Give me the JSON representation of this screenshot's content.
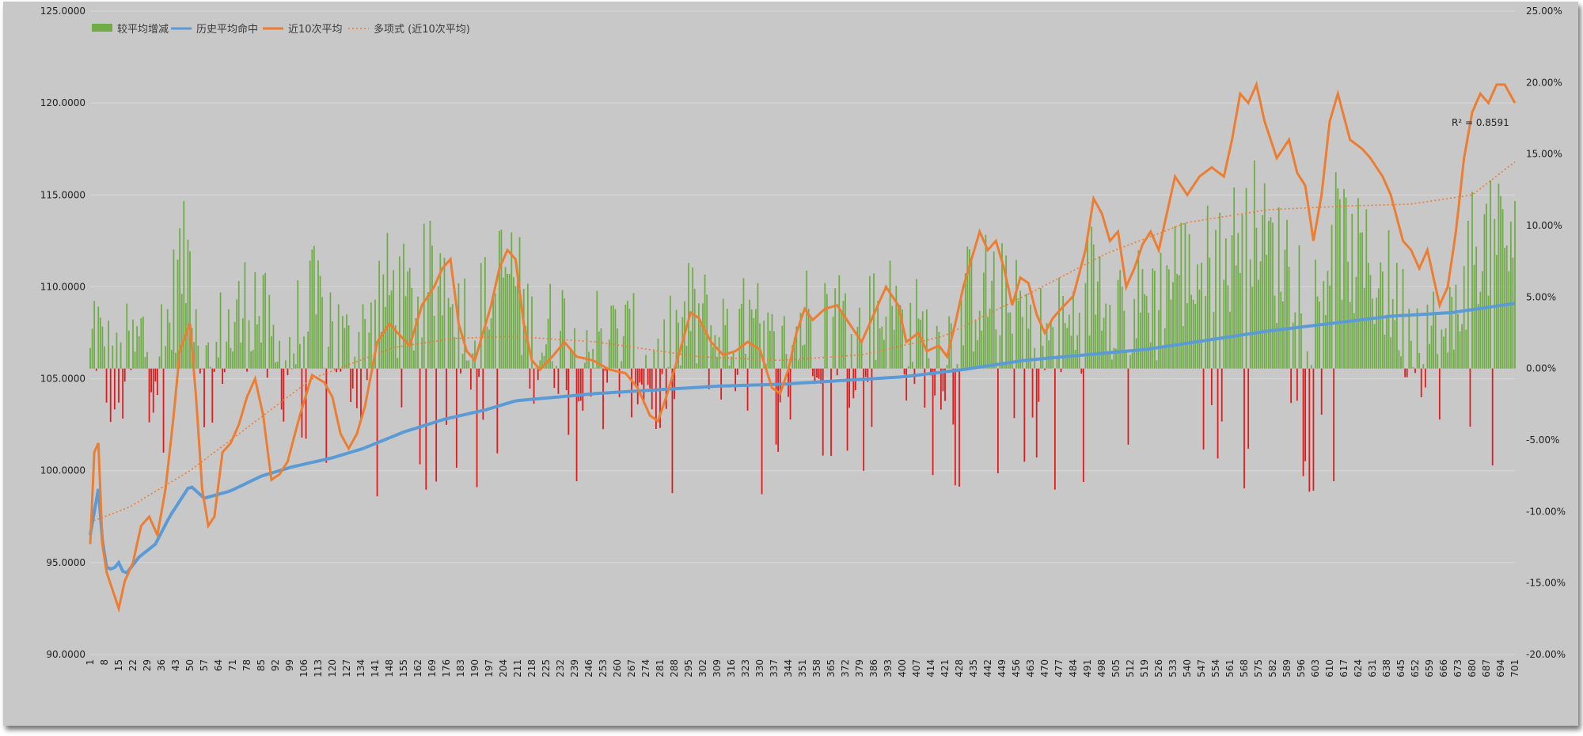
{
  "chart_data": {
    "type": "bar+line",
    "x_range": [
      1,
      701
    ],
    "x_ticks": [
      1,
      8,
      15,
      22,
      29,
      36,
      43,
      50,
      57,
      64,
      71,
      78,
      85,
      92,
      99,
      106,
      113,
      120,
      127,
      134,
      141,
      148,
      155,
      162,
      169,
      176,
      183,
      190,
      197,
      204,
      211,
      218,
      225,
      232,
      239,
      246,
      253,
      260,
      267,
      274,
      281,
      288,
      295,
      302,
      309,
      316,
      323,
      330,
      337,
      344,
      351,
      358,
      365,
      372,
      379,
      386,
      393,
      400,
      407,
      414,
      421,
      428,
      435,
      442,
      449,
      456,
      463,
      470,
      477,
      484,
      491,
      498,
      505,
      512,
      519,
      526,
      533,
      540,
      547,
      554,
      561,
      568,
      575,
      582,
      589,
      596,
      603,
      610,
      617,
      624,
      631,
      638,
      645,
      652,
      659,
      666,
      673,
      680,
      687,
      694,
      701
    ],
    "y_left": {
      "range": [
        90,
        125
      ],
      "ticks": [
        90,
        95,
        100,
        105,
        110,
        115,
        120,
        125
      ],
      "tick_labels": [
        "90.0000",
        "95.0000",
        "100.0000",
        "105.0000",
        "110.0000",
        "115.0000",
        "120.0000",
        "125.0000"
      ]
    },
    "y_right": {
      "range": [
        -0.2,
        0.25
      ],
      "ticks": [
        -0.2,
        -0.15,
        -0.1,
        -0.05,
        0,
        0.05,
        0.1,
        0.15,
        0.2,
        0.25
      ],
      "tick_labels": [
        "-20.00%",
        "-15.00%",
        "-10.00%",
        "-5.00%",
        "0.00%",
        "5.00%",
        "10.00%",
        "15.00%",
        "20.00%",
        "25.00%"
      ]
    },
    "gridlines": true,
    "legend_position": "top-left",
    "legend": [
      {
        "label": "较平均增减",
        "kind": "bar"
      },
      {
        "label": "历史平均命中",
        "kind": "line"
      },
      {
        "label": "近10次平均",
        "kind": "line"
      },
      {
        "label": "多项式 (近10次平均)",
        "kind": "dotted"
      }
    ],
    "annotation": "R² = 0.8591",
    "series": {
      "bar_axis": "y_right",
      "historical_avg_keypoints": [
        [
          1,
          96.5
        ],
        [
          5,
          99
        ],
        [
          8,
          94.8
        ],
        [
          12,
          94.6
        ],
        [
          15,
          95
        ],
        [
          18,
          94.3
        ],
        [
          25,
          95.3
        ],
        [
          33,
          96
        ],
        [
          40,
          97.5
        ],
        [
          50,
          99.2
        ],
        [
          57,
          98.5
        ],
        [
          70,
          98.9
        ],
        [
          85,
          99.7
        ],
        [
          100,
          100.2
        ],
        [
          120,
          100.7
        ],
        [
          135,
          101.2
        ],
        [
          155,
          102.1
        ],
        [
          175,
          102.8
        ],
        [
          195,
          103.3
        ],
        [
          210,
          103.8
        ],
        [
          230,
          104.0
        ],
        [
          250,
          104.2
        ],
        [
          280,
          104.4
        ],
        [
          310,
          104.6
        ],
        [
          340,
          104.7
        ],
        [
          370,
          104.9
        ],
        [
          400,
          105.1
        ],
        [
          430,
          105.5
        ],
        [
          460,
          106.0
        ],
        [
          490,
          106.3
        ],
        [
          520,
          106.6
        ],
        [
          550,
          107.1
        ],
        [
          580,
          107.6
        ],
        [
          610,
          108.0
        ],
        [
          640,
          108.4
        ],
        [
          670,
          108.6
        ],
        [
          701,
          109.1
        ]
      ],
      "recent10_avg_keypoints": [
        [
          1,
          96
        ],
        [
          3,
          101
        ],
        [
          5,
          101.5
        ],
        [
          7,
          96
        ],
        [
          9,
          94.5
        ],
        [
          12,
          93.5
        ],
        [
          15,
          92.5
        ],
        [
          18,
          94
        ],
        [
          22,
          95
        ],
        [
          26,
          97
        ],
        [
          30,
          97.5
        ],
        [
          34,
          96.5
        ],
        [
          38,
          99
        ],
        [
          42,
          103
        ],
        [
          45,
          106.5
        ],
        [
          50,
          108
        ],
        [
          53,
          104
        ],
        [
          56,
          99
        ],
        [
          59,
          97
        ],
        [
          62,
          97.5
        ],
        [
          66,
          101
        ],
        [
          70,
          101.5
        ],
        [
          74,
          102.5
        ],
        [
          78,
          104
        ],
        [
          82,
          105
        ],
        [
          86,
          103
        ],
        [
          90,
          99.5
        ],
        [
          94,
          99.8
        ],
        [
          98,
          100.5
        ],
        [
          104,
          103
        ],
        [
          110,
          105.2
        ],
        [
          116,
          104.8
        ],
        [
          120,
          104
        ],
        [
          124,
          102
        ],
        [
          128,
          101.2
        ],
        [
          132,
          102
        ],
        [
          136,
          103.5
        ],
        [
          142,
          107
        ],
        [
          148,
          108
        ],
        [
          152,
          107.5
        ],
        [
          158,
          106.8
        ],
        [
          164,
          109
        ],
        [
          170,
          110
        ],
        [
          174,
          111
        ],
        [
          178,
          111.5
        ],
        [
          182,
          108
        ],
        [
          186,
          106.5
        ],
        [
          190,
          106
        ],
        [
          194,
          107.5
        ],
        [
          198,
          109
        ],
        [
          202,
          111
        ],
        [
          206,
          112
        ],
        [
          210,
          111.5
        ],
        [
          214,
          108
        ],
        [
          218,
          106
        ],
        [
          222,
          105.5
        ],
        [
          228,
          106.2
        ],
        [
          234,
          107
        ],
        [
          240,
          106.2
        ],
        [
          248,
          106
        ],
        [
          256,
          105.5
        ],
        [
          264,
          105.3
        ],
        [
          270,
          104.5
        ],
        [
          276,
          103
        ],
        [
          280,
          102.7
        ],
        [
          284,
          104
        ],
        [
          288,
          105.5
        ],
        [
          292,
          107
        ],
        [
          296,
          108.6
        ],
        [
          300,
          108.3
        ],
        [
          306,
          107
        ],
        [
          312,
          106.3
        ],
        [
          318,
          106.5
        ],
        [
          324,
          107
        ],
        [
          330,
          106.6
        ],
        [
          336,
          104.5
        ],
        [
          340,
          104.2
        ],
        [
          344,
          105.5
        ],
        [
          348,
          107.5
        ],
        [
          352,
          108.8
        ],
        [
          356,
          108.2
        ],
        [
          362,
          108.8
        ],
        [
          368,
          109
        ],
        [
          374,
          108
        ],
        [
          380,
          107
        ],
        [
          386,
          108.5
        ],
        [
          392,
          110
        ],
        [
          398,
          109
        ],
        [
          402,
          107
        ],
        [
          408,
          107.5
        ],
        [
          412,
          106.5
        ],
        [
          418,
          106.8
        ],
        [
          422,
          106.2
        ],
        [
          426,
          108
        ],
        [
          430,
          110
        ],
        [
          434,
          111.5
        ],
        [
          438,
          113
        ],
        [
          442,
          112
        ],
        [
          446,
          112.5
        ],
        [
          450,
          111
        ],
        [
          454,
          109
        ],
        [
          458,
          110.5
        ],
        [
          462,
          110.2
        ],
        [
          466,
          108.5
        ],
        [
          470,
          107.5
        ],
        [
          474,
          108.3
        ],
        [
          478,
          108.8
        ],
        [
          484,
          109.5
        ],
        [
          490,
          112
        ],
        [
          494,
          114.8
        ],
        [
          498,
          114
        ],
        [
          502,
          112.5
        ],
        [
          506,
          113
        ],
        [
          510,
          110
        ],
        [
          514,
          111
        ],
        [
          518,
          112.3
        ],
        [
          522,
          113
        ],
        [
          526,
          112
        ],
        [
          530,
          114
        ],
        [
          534,
          116
        ],
        [
          540,
          115
        ],
        [
          546,
          116
        ],
        [
          552,
          116.5
        ],
        [
          558,
          116
        ],
        [
          562,
          118
        ],
        [
          566,
          120.5
        ],
        [
          570,
          120
        ],
        [
          574,
          121
        ],
        [
          578,
          119
        ],
        [
          584,
          117
        ],
        [
          590,
          118
        ],
        [
          594,
          116.2
        ],
        [
          598,
          115.5
        ],
        [
          602,
          112.5
        ],
        [
          606,
          115
        ],
        [
          610,
          119
        ],
        [
          614,
          120.5
        ],
        [
          620,
          118
        ],
        [
          626,
          117.5
        ],
        [
          630,
          117
        ],
        [
          636,
          116
        ],
        [
          640,
          115
        ],
        [
          646,
          112.5
        ],
        [
          650,
          112
        ],
        [
          654,
          111
        ],
        [
          658,
          112
        ],
        [
          664,
          109
        ],
        [
          668,
          110
        ],
        [
          672,
          113
        ],
        [
          676,
          117
        ],
        [
          680,
          119.5
        ],
        [
          684,
          120.5
        ],
        [
          688,
          120
        ],
        [
          692,
          121
        ],
        [
          696,
          121
        ],
        [
          701,
          120
        ]
      ],
      "polynomial_trend_keypoints": [
        [
          1,
          97.2
        ],
        [
          20,
          98
        ],
        [
          50,
          100
        ],
        [
          80,
          102.5
        ],
        [
          110,
          105
        ],
        [
          150,
          106.7
        ],
        [
          180,
          107.2
        ],
        [
          210,
          107.3
        ],
        [
          250,
          107
        ],
        [
          300,
          106.2
        ],
        [
          340,
          106
        ],
        [
          380,
          106.3
        ],
        [
          420,
          107.3
        ],
        [
          460,
          109.5
        ],
        [
          500,
          111.8
        ],
        [
          540,
          113.5
        ],
        [
          580,
          114.2
        ],
        [
          620,
          114.4
        ],
        [
          650,
          114.5
        ],
        [
          680,
          115
        ],
        [
          701,
          116.8
        ]
      ]
    }
  }
}
